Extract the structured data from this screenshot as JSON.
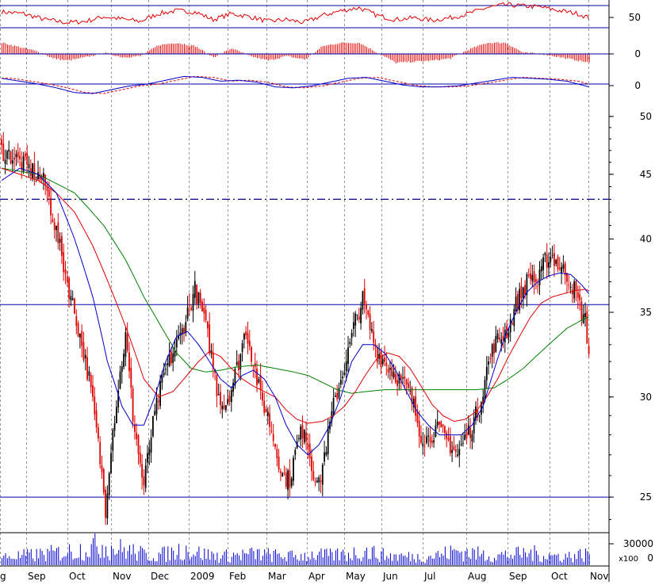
{
  "chart_data": {
    "type": "candlestick",
    "title": "",
    "colors": {
      "up": "#000000",
      "down": "#e00000",
      "ma_fast": "#0000cc",
      "ma_mid": "#e00000",
      "ma_slow": "#008000",
      "level": "#0000aa",
      "grid": "#999999"
    },
    "price_axis": {
      "scale": "log",
      "range": [
        23.5,
        50.5
      ],
      "ticks": [
        "50",
        "45",
        "40",
        "35",
        "30",
        "25"
      ]
    },
    "volume_axis": {
      "ticks": [
        "30000",
        "0"
      ],
      "multiplier_label": "x100"
    },
    "x_axis": {
      "month_labels": [
        "g",
        "Sep",
        "Oct",
        "Nov",
        "Dec",
        "2009",
        "Feb",
        "Mar",
        "Apr",
        "May",
        "Jun",
        "Jul",
        "Aug",
        "Sep",
        "Oct",
        "Nov"
      ]
    },
    "horizontal_levels": {
      "dashdot": 43.0,
      "solid": [
        35.5,
        25.0
      ]
    },
    "price_anchors": [
      [
        0,
        47.0
      ],
      [
        6,
        46.5
      ],
      [
        12,
        45.8
      ],
      [
        18,
        45.2
      ],
      [
        24,
        44.2
      ],
      [
        30,
        40.5
      ],
      [
        36,
        37.0
      ],
      [
        42,
        34.0
      ],
      [
        48,
        31.0
      ],
      [
        53,
        27.5
      ],
      [
        57,
        24.5
      ],
      [
        60,
        27.5
      ],
      [
        64,
        30.5
      ],
      [
        68,
        33.5
      ],
      [
        72,
        29.0
      ],
      [
        76,
        26.5
      ],
      [
        78,
        25.5
      ],
      [
        82,
        28.0
      ],
      [
        86,
        30.0
      ],
      [
        90,
        31.5
      ],
      [
        94,
        32.5
      ],
      [
        98,
        33.5
      ],
      [
        102,
        35.0
      ],
      [
        106,
        36.5
      ],
      [
        110,
        35.0
      ],
      [
        114,
        33.0
      ],
      [
        118,
        30.5
      ],
      [
        122,
        29.5
      ],
      [
        126,
        30.5
      ],
      [
        130,
        32.0
      ],
      [
        134,
        34.0
      ],
      [
        138,
        32.0
      ],
      [
        142,
        30.0
      ],
      [
        146,
        29.0
      ],
      [
        150,
        27.5
      ],
      [
        154,
        26.0
      ],
      [
        158,
        25.8
      ],
      [
        162,
        27.5
      ],
      [
        166,
        28.5
      ],
      [
        170,
        26.5
      ],
      [
        174,
        25.5
      ],
      [
        178,
        27.5
      ],
      [
        182,
        29.5
      ],
      [
        186,
        31.0
      ],
      [
        190,
        32.5
      ],
      [
        194,
        34.5
      ],
      [
        198,
        35.8
      ],
      [
        202,
        34.0
      ],
      [
        206,
        32.5
      ],
      [
        210,
        32.0
      ],
      [
        214,
        31.5
      ],
      [
        218,
        31.0
      ],
      [
        222,
        30.5
      ],
      [
        226,
        29.5
      ],
      [
        230,
        28.0
      ],
      [
        234,
        27.8
      ],
      [
        238,
        28.3
      ],
      [
        242,
        28.0
      ],
      [
        246,
        27.5
      ],
      [
        250,
        27.0
      ],
      [
        254,
        27.8
      ],
      [
        258,
        28.5
      ],
      [
        262,
        29.5
      ],
      [
        266,
        31.5
      ],
      [
        270,
        33.0
      ],
      [
        274,
        33.5
      ],
      [
        278,
        34.0
      ],
      [
        282,
        35.5
      ],
      [
        286,
        36.5
      ],
      [
        290,
        37.5
      ],
      [
        294,
        36.8
      ],
      [
        298,
        38.5
      ],
      [
        302,
        38.8
      ],
      [
        306,
        38.0
      ],
      [
        310,
        37.5
      ],
      [
        314,
        36.5
      ],
      [
        318,
        35.0
      ],
      [
        320,
        34.5
      ],
      [
        322,
        32.5
      ]
    ],
    "ma_fast_anchors": [
      [
        0,
        44.5
      ],
      [
        10,
        45.5
      ],
      [
        20,
        45.0
      ],
      [
        30,
        43.5
      ],
      [
        40,
        40.0
      ],
      [
        50,
        36.0
      ],
      [
        58,
        32.0
      ],
      [
        66,
        29.5
      ],
      [
        72,
        28.5
      ],
      [
        78,
        28.5
      ],
      [
        84,
        30.0
      ],
      [
        90,
        32.0
      ],
      [
        96,
        33.5
      ],
      [
        102,
        33.8
      ],
      [
        108,
        33.0
      ],
      [
        114,
        32.0
      ],
      [
        120,
        31.0
      ],
      [
        126,
        30.5
      ],
      [
        132,
        31.2
      ],
      [
        138,
        31.5
      ],
      [
        144,
        31.0
      ],
      [
        150,
        30.0
      ],
      [
        156,
        28.5
      ],
      [
        162,
        27.5
      ],
      [
        168,
        27.0
      ],
      [
        174,
        27.5
      ],
      [
        180,
        28.5
      ],
      [
        186,
        30.0
      ],
      [
        192,
        32.0
      ],
      [
        198,
        33.0
      ],
      [
        204,
        33.0
      ],
      [
        210,
        32.5
      ],
      [
        216,
        31.5
      ],
      [
        222,
        30.3
      ],
      [
        228,
        29.2
      ],
      [
        234,
        28.5
      ],
      [
        240,
        28.0
      ],
      [
        246,
        28.0
      ],
      [
        252,
        28.0
      ],
      [
        258,
        28.5
      ],
      [
        264,
        29.5
      ],
      [
        270,
        31.5
      ],
      [
        276,
        33.5
      ],
      [
        282,
        35.0
      ],
      [
        288,
        36.3
      ],
      [
        294,
        37.0
      ],
      [
        300,
        37.4
      ],
      [
        306,
        37.6
      ],
      [
        312,
        37.5
      ],
      [
        318,
        36.8
      ],
      [
        322,
        36.2
      ]
    ],
    "ma_mid_anchors": [
      [
        0,
        45.5
      ],
      [
        10,
        45.0
      ],
      [
        20,
        44.5
      ],
      [
        30,
        43.5
      ],
      [
        40,
        42.0
      ],
      [
        50,
        39.5
      ],
      [
        60,
        36.5
      ],
      [
        70,
        33.5
      ],
      [
        78,
        31.0
      ],
      [
        86,
        30.0
      ],
      [
        94,
        30.3
      ],
      [
        100,
        31.0
      ],
      [
        108,
        32.0
      ],
      [
        114,
        32.6
      ],
      [
        120,
        32.3
      ],
      [
        126,
        31.6
      ],
      [
        132,
        31.0
      ],
      [
        138,
        30.6
      ],
      [
        144,
        30.3
      ],
      [
        150,
        30.0
      ],
      [
        156,
        29.3
      ],
      [
        162,
        28.8
      ],
      [
        168,
        28.6
      ],
      [
        176,
        28.7
      ],
      [
        182,
        29.0
      ],
      [
        188,
        29.5
      ],
      [
        194,
        30.3
      ],
      [
        200,
        31.3
      ],
      [
        206,
        32.2
      ],
      [
        212,
        32.5
      ],
      [
        218,
        32.3
      ],
      [
        224,
        31.6
      ],
      [
        230,
        30.6
      ],
      [
        236,
        29.6
      ],
      [
        242,
        29.0
      ],
      [
        248,
        28.7
      ],
      [
        254,
        28.8
      ],
      [
        260,
        29.2
      ],
      [
        266,
        30.0
      ],
      [
        272,
        31.0
      ],
      [
        278,
        32.3
      ],
      [
        284,
        33.5
      ],
      [
        290,
        34.7
      ],
      [
        296,
        35.6
      ],
      [
        302,
        36.0
      ],
      [
        308,
        36.2
      ],
      [
        314,
        36.4
      ],
      [
        320,
        36.5
      ],
      [
        322,
        36.4
      ]
    ],
    "ma_slow_anchors": [
      [
        0,
        45.5
      ],
      [
        20,
        45.0
      ],
      [
        40,
        43.5
      ],
      [
        56,
        41.0
      ],
      [
        68,
        38.5
      ],
      [
        78,
        36.0
      ],
      [
        88,
        34.0
      ],
      [
        96,
        32.5
      ],
      [
        104,
        31.6
      ],
      [
        112,
        31.4
      ],
      [
        120,
        31.5
      ],
      [
        130,
        31.7
      ],
      [
        140,
        31.8
      ],
      [
        150,
        31.6
      ],
      [
        160,
        31.4
      ],
      [
        168,
        31.2
      ],
      [
        176,
        30.8
      ],
      [
        184,
        30.4
      ],
      [
        192,
        30.2
      ],
      [
        200,
        30.3
      ],
      [
        210,
        30.4
      ],
      [
        220,
        30.4
      ],
      [
        230,
        30.4
      ],
      [
        240,
        30.4
      ],
      [
        250,
        30.4
      ],
      [
        260,
        30.4
      ],
      [
        270,
        30.5
      ],
      [
        278,
        31.0
      ],
      [
        286,
        31.6
      ],
      [
        294,
        32.4
      ],
      [
        302,
        33.2
      ],
      [
        310,
        34.0
      ],
      [
        318,
        34.5
      ],
      [
        322,
        34.7
      ]
    ],
    "rsi_anchors": [
      [
        0,
        58
      ],
      [
        12,
        55
      ],
      [
        24,
        45
      ],
      [
        36,
        40
      ],
      [
        46,
        42
      ],
      [
        56,
        50
      ],
      [
        66,
        46
      ],
      [
        76,
        42
      ],
      [
        86,
        55
      ],
      [
        96,
        60
      ],
      [
        106,
        58
      ],
      [
        116,
        45
      ],
      [
        126,
        55
      ],
      [
        136,
        50
      ],
      [
        146,
        42
      ],
      [
        156,
        45
      ],
      [
        166,
        40
      ],
      [
        176,
        52
      ],
      [
        186,
        60
      ],
      [
        196,
        65
      ],
      [
        206,
        52
      ],
      [
        216,
        45
      ],
      [
        226,
        48
      ],
      [
        236,
        44
      ],
      [
        246,
        48
      ],
      [
        256,
        55
      ],
      [
        266,
        65
      ],
      [
        276,
        70
      ],
      [
        286,
        68
      ],
      [
        296,
        66
      ],
      [
        306,
        60
      ],
      [
        316,
        55
      ],
      [
        322,
        48
      ]
    ],
    "macd_hist_anchors": [
      [
        0,
        1.0
      ],
      [
        10,
        0.6
      ],
      [
        20,
        0.2
      ],
      [
        28,
        -0.4
      ],
      [
        36,
        -0.6
      ],
      [
        46,
        -0.3
      ],
      [
        56,
        0.1
      ],
      [
        66,
        -0.3
      ],
      [
        76,
        -0.2
      ],
      [
        86,
        0.8
      ],
      [
        96,
        1.0
      ],
      [
        106,
        0.7
      ],
      [
        116,
        -0.3
      ],
      [
        126,
        0.5
      ],
      [
        136,
        -0.2
      ],
      [
        146,
        -0.6
      ],
      [
        156,
        -0.2
      ],
      [
        166,
        -0.5
      ],
      [
        176,
        0.7
      ],
      [
        186,
        1.0
      ],
      [
        196,
        1.0
      ],
      [
        206,
        0.1
      ],
      [
        216,
        -0.8
      ],
      [
        226,
        -0.7
      ],
      [
        236,
        -0.6
      ],
      [
        246,
        -0.4
      ],
      [
        256,
        0.4
      ],
      [
        266,
        1.0
      ],
      [
        276,
        1.0
      ],
      [
        286,
        0.1
      ],
      [
        296,
        0.0
      ],
      [
        306,
        -0.3
      ],
      [
        316,
        -0.6
      ],
      [
        322,
        -0.8
      ]
    ],
    "macd_line_anchors": [
      [
        0,
        0.6
      ],
      [
        10,
        0.3
      ],
      [
        20,
        0.0
      ],
      [
        30,
        -0.4
      ],
      [
        40,
        -0.9
      ],
      [
        50,
        -1.0
      ],
      [
        60,
        -0.6
      ],
      [
        70,
        -0.2
      ],
      [
        80,
        0.0
      ],
      [
        90,
        0.4
      ],
      [
        100,
        0.8
      ],
      [
        110,
        0.7
      ],
      [
        120,
        0.3
      ],
      [
        130,
        0.4
      ],
      [
        140,
        0.2
      ],
      [
        150,
        -0.3
      ],
      [
        160,
        -0.4
      ],
      [
        170,
        -0.2
      ],
      [
        180,
        0.2
      ],
      [
        190,
        0.6
      ],
      [
        200,
        0.7
      ],
      [
        210,
        0.3
      ],
      [
        220,
        -0.1
      ],
      [
        230,
        -0.3
      ],
      [
        240,
        -0.3
      ],
      [
        250,
        -0.2
      ],
      [
        260,
        0.1
      ],
      [
        270,
        0.4
      ],
      [
        280,
        0.7
      ],
      [
        290,
        0.6
      ],
      [
        300,
        0.5
      ],
      [
        310,
        0.3
      ],
      [
        320,
        -0.2
      ],
      [
        322,
        -0.3
      ]
    ],
    "volume_anchors": [
      [
        0,
        10000
      ],
      [
        20,
        13000
      ],
      [
        40,
        18000
      ],
      [
        55,
        26000
      ],
      [
        60,
        22000
      ],
      [
        70,
        18000
      ],
      [
        80,
        12000
      ],
      [
        90,
        14000
      ],
      [
        100,
        20000
      ],
      [
        110,
        14000
      ],
      [
        120,
        11000
      ],
      [
        130,
        13000
      ],
      [
        140,
        14000
      ],
      [
        150,
        12000
      ],
      [
        160,
        11000
      ],
      [
        170,
        13000
      ],
      [
        180,
        12000
      ],
      [
        190,
        14000
      ],
      [
        200,
        17000
      ],
      [
        210,
        12000
      ],
      [
        220,
        11000
      ],
      [
        230,
        10000
      ],
      [
        240,
        13000
      ],
      [
        250,
        18000
      ],
      [
        260,
        14000
      ],
      [
        270,
        12000
      ],
      [
        280,
        13000
      ],
      [
        290,
        15000
      ],
      [
        300,
        12000
      ],
      [
        310,
        11000
      ],
      [
        322,
        14000
      ]
    ]
  }
}
